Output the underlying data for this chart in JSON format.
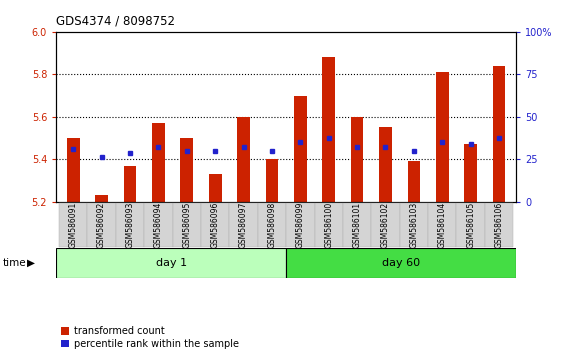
{
  "title": "GDS4374 / 8098752",
  "samples": [
    "GSM586091",
    "GSM586092",
    "GSM586093",
    "GSM586094",
    "GSM586095",
    "GSM586096",
    "GSM586097",
    "GSM586098",
    "GSM586099",
    "GSM586100",
    "GSM586101",
    "GSM586102",
    "GSM586103",
    "GSM586104",
    "GSM586105",
    "GSM586106"
  ],
  "red_values": [
    5.5,
    5.23,
    5.37,
    5.57,
    5.5,
    5.33,
    5.6,
    5.4,
    5.7,
    5.88,
    5.6,
    5.55,
    5.39,
    5.81,
    5.47,
    5.84
  ],
  "blue_values": [
    5.45,
    5.41,
    5.43,
    5.46,
    5.44,
    5.44,
    5.46,
    5.44,
    5.48,
    5.5,
    5.46,
    5.46,
    5.44,
    5.48,
    5.47,
    5.5
  ],
  "day1_samples": 8,
  "day60_samples": 8,
  "ylim_left": [
    5.2,
    6.0
  ],
  "ylim_right": [
    0,
    100
  ],
  "yticks_left": [
    5.2,
    5.4,
    5.6,
    5.8,
    6.0
  ],
  "yticks_right": [
    0,
    25,
    50,
    75,
    100
  ],
  "bar_color": "#cc2200",
  "blue_color": "#2222cc",
  "day1_color": "#bbffbb",
  "day60_color": "#44dd44",
  "grid_color": "#000000",
  "legend_red": "transformed count",
  "legend_blue": "percentile rank within the sample",
  "ylabel_left_color": "#cc2200",
  "ylabel_right_color": "#2222cc",
  "bar_bottom": 5.2,
  "bar_width": 0.45
}
